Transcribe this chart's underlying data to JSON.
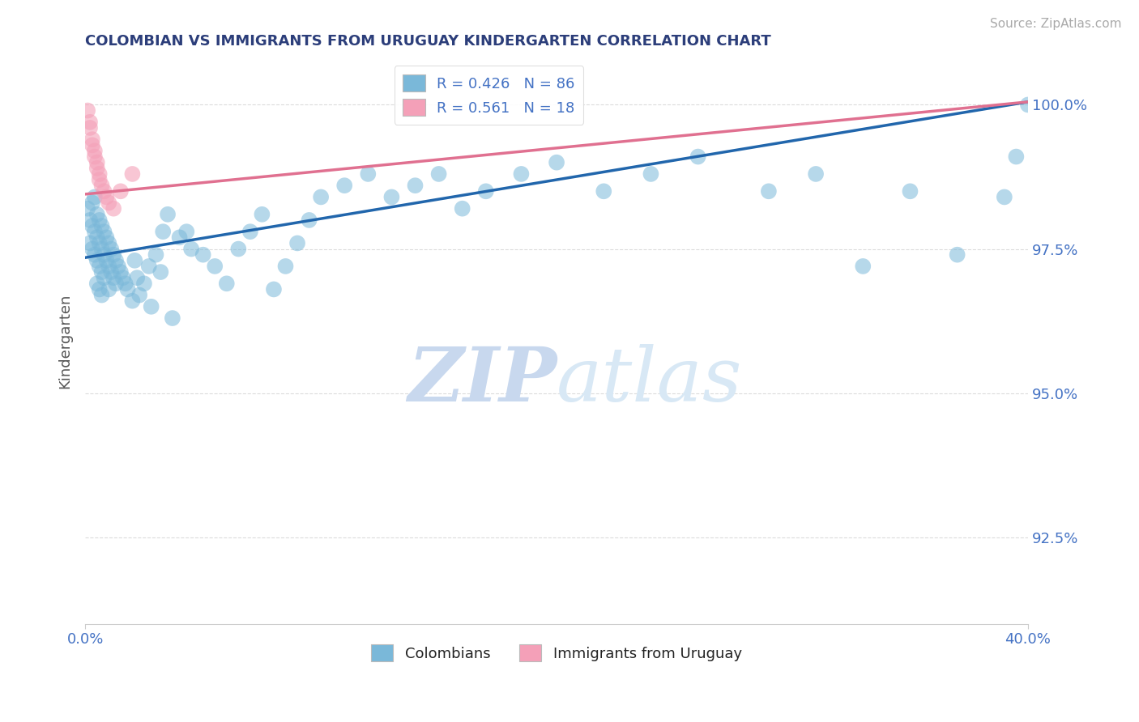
{
  "title": "COLOMBIAN VS IMMIGRANTS FROM URUGUAY KINDERGARTEN CORRELATION CHART",
  "source_text": "Source: ZipAtlas.com",
  "ylabel": "Kindergarten",
  "xlim": [
    0.0,
    0.4
  ],
  "ylim": [
    0.91,
    1.008
  ],
  "x_ticks": [
    0.0,
    0.4
  ],
  "x_tick_labels": [
    "0.0%",
    "40.0%"
  ],
  "y_ticks": [
    0.925,
    0.95,
    0.975,
    1.0
  ],
  "y_tick_labels": [
    "92.5%",
    "95.0%",
    "97.5%",
    "100.0%"
  ],
  "legend_blue_label": "R = 0.426   N = 86",
  "legend_pink_label": "R = 0.561   N = 18",
  "legend_colombians": "Colombians",
  "legend_uruguay": "Immigrants from Uruguay",
  "blue_color": "#7ab8d9",
  "pink_color": "#f4a0b8",
  "blue_line_color": "#2166ac",
  "pink_line_color": "#e07090",
  "title_color": "#2c3e7a",
  "axis_label_color": "#555555",
  "tick_color": "#4472c4",
  "source_color": "#aaaaaa",
  "watermark_color": "#dce8f5",
  "background_color": "#ffffff",
  "grid_color": "#cccccc",
  "blue_line_x": [
    0.0,
    0.4
  ],
  "blue_line_y": [
    0.9735,
    1.0005
  ],
  "pink_line_x": [
    0.0,
    0.4
  ],
  "pink_line_y": [
    0.9845,
    1.0005
  ],
  "blue_x": [
    0.001,
    0.002,
    0.002,
    0.003,
    0.003,
    0.003,
    0.004,
    0.004,
    0.004,
    0.005,
    0.005,
    0.005,
    0.005,
    0.006,
    0.006,
    0.006,
    0.006,
    0.007,
    0.007,
    0.007,
    0.007,
    0.008,
    0.008,
    0.008,
    0.009,
    0.009,
    0.01,
    0.01,
    0.01,
    0.011,
    0.011,
    0.012,
    0.012,
    0.013,
    0.013,
    0.014,
    0.015,
    0.016,
    0.017,
    0.018,
    0.02,
    0.021,
    0.022,
    0.023,
    0.025,
    0.027,
    0.028,
    0.03,
    0.032,
    0.033,
    0.035,
    0.037,
    0.04,
    0.043,
    0.045,
    0.05,
    0.055,
    0.06,
    0.065,
    0.07,
    0.075,
    0.08,
    0.085,
    0.09,
    0.095,
    0.1,
    0.11,
    0.12,
    0.13,
    0.14,
    0.15,
    0.16,
    0.17,
    0.185,
    0.2,
    0.22,
    0.24,
    0.26,
    0.29,
    0.31,
    0.33,
    0.35,
    0.37,
    0.39,
    0.395,
    0.4
  ],
  "blue_y": [
    0.982,
    0.98,
    0.976,
    0.983,
    0.979,
    0.975,
    0.984,
    0.978,
    0.974,
    0.981,
    0.977,
    0.973,
    0.969,
    0.98,
    0.976,
    0.972,
    0.968,
    0.979,
    0.975,
    0.971,
    0.967,
    0.978,
    0.974,
    0.97,
    0.977,
    0.973,
    0.976,
    0.972,
    0.968,
    0.975,
    0.971,
    0.974,
    0.97,
    0.973,
    0.969,
    0.972,
    0.971,
    0.97,
    0.969,
    0.968,
    0.966,
    0.973,
    0.97,
    0.967,
    0.969,
    0.972,
    0.965,
    0.974,
    0.971,
    0.978,
    0.981,
    0.963,
    0.977,
    0.978,
    0.975,
    0.974,
    0.972,
    0.969,
    0.975,
    0.978,
    0.981,
    0.968,
    0.972,
    0.976,
    0.98,
    0.984,
    0.986,
    0.988,
    0.984,
    0.986,
    0.988,
    0.982,
    0.985,
    0.988,
    0.99,
    0.985,
    0.988,
    0.991,
    0.985,
    0.988,
    0.972,
    0.985,
    0.974,
    0.984,
    0.991,
    1.0
  ],
  "pink_x": [
    0.001,
    0.002,
    0.002,
    0.003,
    0.003,
    0.004,
    0.004,
    0.005,
    0.005,
    0.006,
    0.006,
    0.007,
    0.008,
    0.009,
    0.01,
    0.012,
    0.015,
    0.02
  ],
  "pink_y": [
    0.999,
    0.997,
    0.996,
    0.994,
    0.993,
    0.992,
    0.991,
    0.99,
    0.989,
    0.988,
    0.987,
    0.986,
    0.985,
    0.984,
    0.983,
    0.982,
    0.985,
    0.988
  ]
}
